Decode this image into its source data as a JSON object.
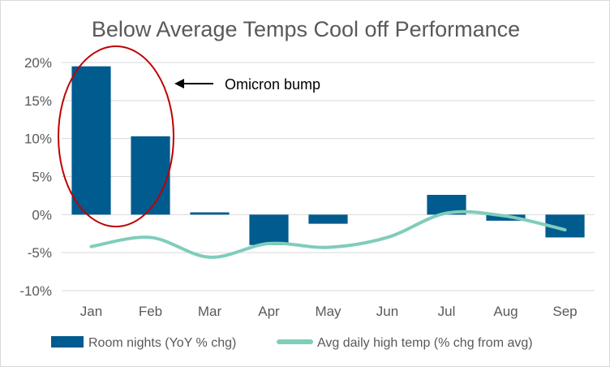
{
  "chart_data": {
    "type": "bar",
    "title": "Below Average Temps Cool off Performance",
    "categories": [
      "Jan",
      "Feb",
      "Mar",
      "Apr",
      "May",
      "Jun",
      "Jul",
      "Aug",
      "Sep"
    ],
    "ylim": [
      -10,
      20
    ],
    "yticks": [
      -10,
      -5,
      0,
      5,
      10,
      15,
      20
    ],
    "ytick_labels": [
      "-10%",
      "-5%",
      "0%",
      "5%",
      "10%",
      "15%",
      "20%"
    ],
    "grid": true,
    "legend_position": "bottom",
    "series": [
      {
        "name": "Room nights (YoY % chg)",
        "type": "bar",
        "color": "#005b8f",
        "values": [
          19.5,
          10.3,
          0.3,
          -4.0,
          -1.2,
          0.0,
          2.6,
          -0.8,
          -3.0
        ]
      },
      {
        "name": "Avg daily high temp (% chg from avg)",
        "type": "line",
        "color": "#7fcdbb",
        "values": [
          -4.2,
          -3.0,
          -5.6,
          -3.8,
          -4.3,
          -3.0,
          0.2,
          -0.2,
          -2.0
        ]
      }
    ],
    "annotations": [
      {
        "text": "Omicron bump",
        "target_categories": [
          "Jan",
          "Feb"
        ]
      }
    ]
  }
}
